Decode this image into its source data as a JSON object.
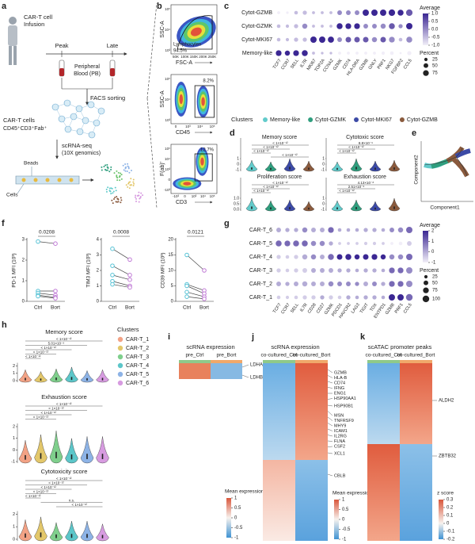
{
  "a": {
    "label": "a",
    "infusion_1": "CAR-T cell",
    "infusion_2": "Infusion",
    "peak": "Peak",
    "late": "Late",
    "blood_1": "Peripheral",
    "blood_2": "Blood (PB)",
    "facs": "FACS sorting",
    "cells": "CAR-T cells",
    "markers": "CD45⁺CD3⁺Fab⁺",
    "seq": "scRNA-seq",
    "seq_platform": "(10X genomics)",
    "beads": "Beads",
    "cells_label": "Cells"
  },
  "b": {
    "label": "b",
    "plots": [
      {
        "y_label": "SSC-A",
        "x_label": "FSC-A",
        "gate": "Lymphocytes",
        "percent": "94.5%",
        "yticks": [
          "10⁵",
          "10⁴",
          "10³"
        ],
        "xticks": [
          "50K",
          "100K",
          "150K",
          "200K",
          "250K"
        ]
      },
      {
        "y_label": "SSC-A",
        "x_label": "CD45",
        "percent": "8.2%",
        "yticks": [
          "10⁵",
          "10⁴",
          "10³"
        ],
        "xticks": [
          "0",
          "10³",
          "10⁴",
          "10⁵"
        ]
      },
      {
        "y_label": "F(ab)'",
        "x_label": "CD3",
        "percent": "12.7%",
        "yticks": [
          "10⁵",
          "10⁴",
          "10³",
          "0",
          "-10³"
        ],
        "xticks": [
          "-10³",
          "0",
          "10³",
          "10⁴",
          "10⁵"
        ]
      }
    ]
  },
  "c": {
    "label": "c",
    "rows": [
      "Cytot-GZMB",
      "Cytot-GZMK",
      "Cytot-MKI67",
      "Memory-like"
    ],
    "genes": [
      "TCF7",
      "CCR7",
      "SELL",
      "IL7R",
      "MKI67",
      "TOP2A",
      "CCNA2",
      "GZMK",
      "CD74",
      "HLA-DRA",
      "GZMB",
      "GNLY",
      "PRF1",
      "NKG7",
      "FGFBP2",
      "CCL5"
    ],
    "average": [
      [
        -1,
        -1,
        -0.5,
        -0.5,
        -0.5,
        -0.5,
        -0.5,
        0,
        0,
        0,
        1,
        1,
        1,
        1,
        1,
        0.5
      ],
      [
        -0.5,
        -0.5,
        -0.5,
        0,
        -0.5,
        -0.5,
        -0.5,
        1,
        1,
        1,
        0,
        0,
        0,
        0.5,
        0,
        1
      ],
      [
        -0.5,
        -0.5,
        -0.5,
        -0.5,
        1,
        1,
        1,
        0,
        0.5,
        0.5,
        0.5,
        0,
        0.5,
        0,
        -0.5,
        0
      ],
      [
        1,
        1,
        1,
        1,
        -0.5,
        -0.5,
        -0.5,
        -1,
        -1,
        -1,
        -1,
        -1,
        -1,
        -1,
        -1,
        -1
      ]
    ],
    "percent": [
      [
        20,
        15,
        30,
        40,
        20,
        20,
        20,
        50,
        50,
        50,
        90,
        90,
        90,
        95,
        80,
        95
      ],
      [
        30,
        25,
        40,
        60,
        20,
        20,
        20,
        80,
        75,
        75,
        50,
        50,
        60,
        80,
        40,
        90
      ],
      [
        30,
        25,
        40,
        40,
        90,
        90,
        85,
        50,
        70,
        70,
        70,
        60,
        70,
        75,
        30,
        80
      ],
      [
        75,
        60,
        75,
        80,
        20,
        15,
        15,
        20,
        20,
        20,
        20,
        20,
        25,
        30,
        10,
        40
      ]
    ],
    "color_title": "Average",
    "color_ticks": [
      {
        "value": 1,
        "label": "1.0"
      },
      {
        "value": 0.5,
        "label": "0.5"
      },
      {
        "value": 0,
        "label": "0.0"
      },
      {
        "value": -0.5,
        "label": "-0.5"
      },
      {
        "value": -1,
        "label": "-1.0"
      }
    ],
    "color_low": "#f1eef8",
    "color_high": "#3b2793",
    "size_title": "Percent",
    "size_ticks": [
      25,
      50,
      75
    ]
  },
  "clusters": {
    "title": "Clusters",
    "items": [
      {
        "name": "Memory-like",
        "color": "#62cbcb"
      },
      {
        "name": "Cytot-GZMK",
        "color": "#2f9e7e"
      },
      {
        "name": "Cytot-MKI67",
        "color": "#3c4aa6"
      },
      {
        "name": "Cytot-GZMB",
        "color": "#8a5a3d"
      }
    ]
  },
  "d": {
    "label": "d",
    "plots": [
      {
        "title": "Memory score",
        "yticks": [
          1,
          0,
          -1
        ],
        "p_values": [
          "< 1×10⁻¹²",
          "< 1×10⁻¹²",
          "< 1×10⁻¹²",
          "< 1×10⁻¹²"
        ]
      },
      {
        "title": "Cytotoxic score",
        "yticks": [
          1,
          0,
          -1
        ],
        "p_values": [
          "8.8×10⁻⁹",
          "< 1×10⁻¹²",
          "< 1×10⁻¹²"
        ]
      },
      {
        "title": "Proliferation score",
        "yticks": [
          {
            "value": 1,
            "label": "1.0"
          },
          {
            "value": 0.5,
            "label": "0.5"
          },
          {
            "value": 0,
            "label": "0.0"
          }
        ],
        "p_values": [
          "< 1×10⁻¹²",
          "< 1×10⁻¹²",
          "< 1×10⁻¹²"
        ]
      },
      {
        "title": "Exhaustion score",
        "yticks": [
          1,
          0,
          -1
        ],
        "p_values": [
          "4.13×10⁻⁸",
          "2.51×10⁻⁶",
          "< 1×10⁻¹²"
        ]
      }
    ]
  },
  "e": {
    "label": "e",
    "y_label": "Component2",
    "x_label": "Component1"
  },
  "f": {
    "label": "f",
    "categories": [
      "Ctrl",
      "Bort"
    ],
    "ctrl_color": "#58c3d6",
    "bort_color": "#c07ad6",
    "plots": [
      {
        "y_label": "PD-1 MFI (10³)",
        "p_value": "0.0208",
        "ylim": [
          0,
          3
        ],
        "yticks": [
          0,
          1,
          2,
          3
        ],
        "ctrl": [
          2.9,
          0.5,
          0.4,
          0.3,
          0.25
        ],
        "bort": [
          2.8,
          0.5,
          0.3,
          0.2,
          0.15
        ]
      },
      {
        "y_label": "TIM3 MFI (10³)",
        "p_value": "0.0008",
        "ylim": [
          0,
          4
        ],
        "yticks": [
          0,
          1,
          2,
          3,
          4
        ],
        "ctrl": [
          3.4,
          2.3,
          1.7,
          1.3,
          1.1
        ],
        "bort": [
          2.7,
          1.7,
          1.4,
          1.0,
          0.9
        ]
      },
      {
        "y_label": "CD39 MFI (10³)",
        "p_value": "0.0121",
        "ylim": [
          0,
          20
        ],
        "yticks": [
          0,
          5,
          10,
          15,
          20
        ],
        "ctrl": [
          15,
          5.5,
          5,
          3,
          1.5
        ],
        "bort": [
          10,
          3.5,
          2.5,
          1.5,
          0.8
        ]
      }
    ]
  },
  "g": {
    "label": "g",
    "rows": [
      "CAR-T_6",
      "CAR-T_5",
      "CAR-T_4",
      "CAR-T_3",
      "CAR-T_2",
      "CAR-T_1"
    ],
    "genes": [
      "TCF7",
      "CCR7",
      "SELL",
      "IL7R",
      "CD28",
      "CD27",
      "GZMK",
      "PDCD1",
      "HAVCR2",
      "LAG3",
      "TIGIT",
      "TOX",
      "ENTPD1",
      "GZMB",
      "PRF1",
      "CCL5"
    ],
    "average": [
      [
        0,
        0,
        0,
        0.5,
        0,
        0,
        1,
        0,
        0,
        0,
        0,
        0,
        0,
        0.5,
        0.5,
        1
      ],
      [
        1,
        1,
        1,
        1,
        0.5,
        0.5,
        0,
        -0.5,
        -0.5,
        -0.5,
        -0.5,
        -0.5,
        -0.5,
        -1,
        -1,
        -0.5
      ],
      [
        -0.5,
        -0.5,
        -0.5,
        0,
        0.5,
        0,
        1,
        2,
        2,
        2,
        2,
        2,
        2,
        0.5,
        0.5,
        1
      ],
      [
        -0.5,
        -0.5,
        -0.5,
        -0.5,
        0,
        0,
        0,
        0,
        0,
        0,
        0,
        0,
        0,
        1,
        1,
        0.5
      ],
      [
        0,
        0,
        0,
        0,
        0,
        0,
        0.5,
        0.5,
        0.5,
        0.5,
        0,
        0.5,
        0,
        1,
        1,
        0.5
      ],
      [
        -0.5,
        -0.5,
        -0.5,
        -0.5,
        -0.5,
        0,
        -0.5,
        -0.5,
        0,
        0,
        0,
        0,
        0,
        2,
        2,
        1
      ]
    ],
    "percent": [
      [
        50,
        40,
        40,
        60,
        50,
        50,
        75,
        30,
        30,
        30,
        40,
        40,
        30,
        50,
        60,
        90
      ],
      [
        80,
        75,
        80,
        80,
        60,
        60,
        40,
        20,
        20,
        20,
        25,
        25,
        20,
        20,
        30,
        50
      ],
      [
        40,
        30,
        40,
        60,
        60,
        50,
        80,
        70,
        80,
        60,
        70,
        75,
        60,
        60,
        60,
        90
      ],
      [
        40,
        30,
        40,
        50,
        50,
        50,
        50,
        40,
        40,
        30,
        40,
        40,
        30,
        75,
        75,
        90
      ],
      [
        50,
        40,
        50,
        60,
        50,
        50,
        60,
        50,
        50,
        40,
        50,
        50,
        40,
        75,
        75,
        90
      ],
      [
        30,
        25,
        30,
        40,
        40,
        40,
        40,
        30,
        40,
        30,
        40,
        40,
        30,
        90,
        90,
        100
      ]
    ],
    "color_title": "Average",
    "color_ticks": [
      2,
      1,
      0,
      -1
    ],
    "color_low": "#f1eef8",
    "color_high": "#3b2793",
    "size_title": "Percent",
    "size_ticks": [
      25,
      50,
      75,
      100
    ]
  },
  "h": {
    "label": "h",
    "cluster_title": "Clusters",
    "clusters": [
      {
        "name": "CAR-T_1",
        "color": "#f2a285"
      },
      {
        "name": "CAR-T_2",
        "color": "#e3c76a"
      },
      {
        "name": "CAR-T_3",
        "color": "#7fcf8c"
      },
      {
        "name": "CAR-T_4",
        "color": "#5cc6c9"
      },
      {
        "name": "CAR-T_5",
        "color": "#8db3e6"
      },
      {
        "name": "CAR-T_6",
        "color": "#d79be0"
      }
    ],
    "plots": [
      {
        "title": "Memory score",
        "yticks": [
          2,
          1,
          0
        ],
        "p_values": [
          "< 1×10⁻¹²",
          "5.01×10⁻⁹",
          "< 1×10⁻¹²",
          "< 1×10⁻¹²",
          "< 1×10⁻¹²"
        ]
      },
      {
        "title": "Exhaustion score",
        "yticks": [
          2,
          1,
          0,
          -1
        ],
        "p_values": [
          "< 1×10⁻¹²",
          "< 1×10⁻¹²",
          "< 1×10⁻¹²",
          "< 1×10⁻¹²"
        ]
      },
      {
        "title": "Cytotoxicity score",
        "yticks": [
          2,
          1,
          0
        ],
        "p_values": [
          "< 1×10⁻¹²",
          "< 1×10⁻¹²",
          "< 1×10⁻¹²",
          "< 1×10⁻¹²",
          "< 1×10⁻¹²",
          "n.s.",
          "< 1×10⁻¹²"
        ]
      }
    ]
  },
  "i": {
    "label": "i",
    "title": "scRNA expression",
    "columns": [
      "pre_Ctrl",
      "pre_Bort"
    ],
    "genes": [
      "LDHA",
      "LDHB"
    ],
    "color_title": "Mean expression",
    "color_ticks": [
      1,
      0.5,
      0,
      -0.5,
      -1
    ]
  },
  "j": {
    "label": "j",
    "title": "scRNA expression",
    "columns": [
      "co-cultured_Ctrl",
      "co-cultured_Bort"
    ],
    "genes": [
      "GZMB",
      "HLA-B",
      "CD74",
      "IFNG",
      "ENG1",
      "HSP90AA1",
      "HSP90B1",
      "MSN",
      "TNFRSF9",
      "MHY9",
      "ICAM1",
      "IL2RG",
      "FLNA",
      "CSF2",
      "XCL1",
      "CBLB"
    ],
    "color_title": "Mean expression",
    "color_ticks": [
      1,
      0.5,
      0,
      -0.5,
      -1
    ]
  },
  "k": {
    "label": "k",
    "title": "scATAC promoter peaks",
    "columns": [
      "co-cultured_Ctrl",
      "co-cultured_Bort"
    ],
    "genes": [
      "ALDH2",
      "ZBTB32"
    ],
    "color_title": "z score",
    "color_ticks": [
      0.3,
      0.2,
      0.1,
      0,
      -0.1,
      -0.2
    ]
  }
}
